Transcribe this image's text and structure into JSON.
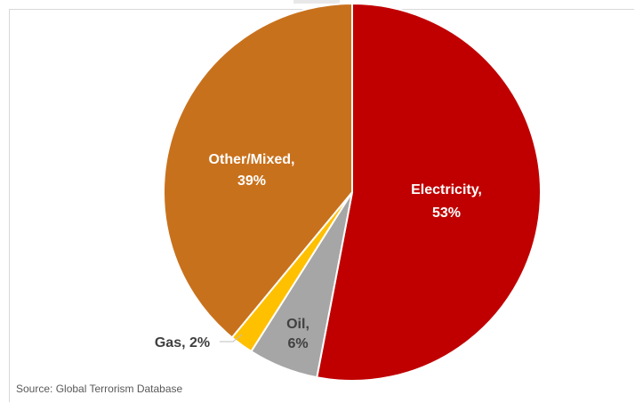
{
  "chart_data": {
    "type": "pie",
    "slices": [
      {
        "label": "Electricity",
        "value": 53,
        "display": "Electricity,",
        "pct": "53%",
        "color": "#c00000",
        "text_color": "#ffffff"
      },
      {
        "label": "Oil",
        "value": 6,
        "display": "Oil,",
        "pct": "6%",
        "color": "#a6a6a6",
        "text_color": "#404040"
      },
      {
        "label": "Gas",
        "value": 2,
        "display": "Gas, 2%",
        "pct": "",
        "color": "#ffc000",
        "text_color": "#404040"
      },
      {
        "label": "Other/Mixed",
        "value": 39,
        "display": "Other/Mixed,",
        "pct": "39%",
        "color": "#c8711c",
        "text_color": "#ffffff"
      }
    ],
    "legend": "none",
    "source": "Source: Global Terrorism Database"
  }
}
